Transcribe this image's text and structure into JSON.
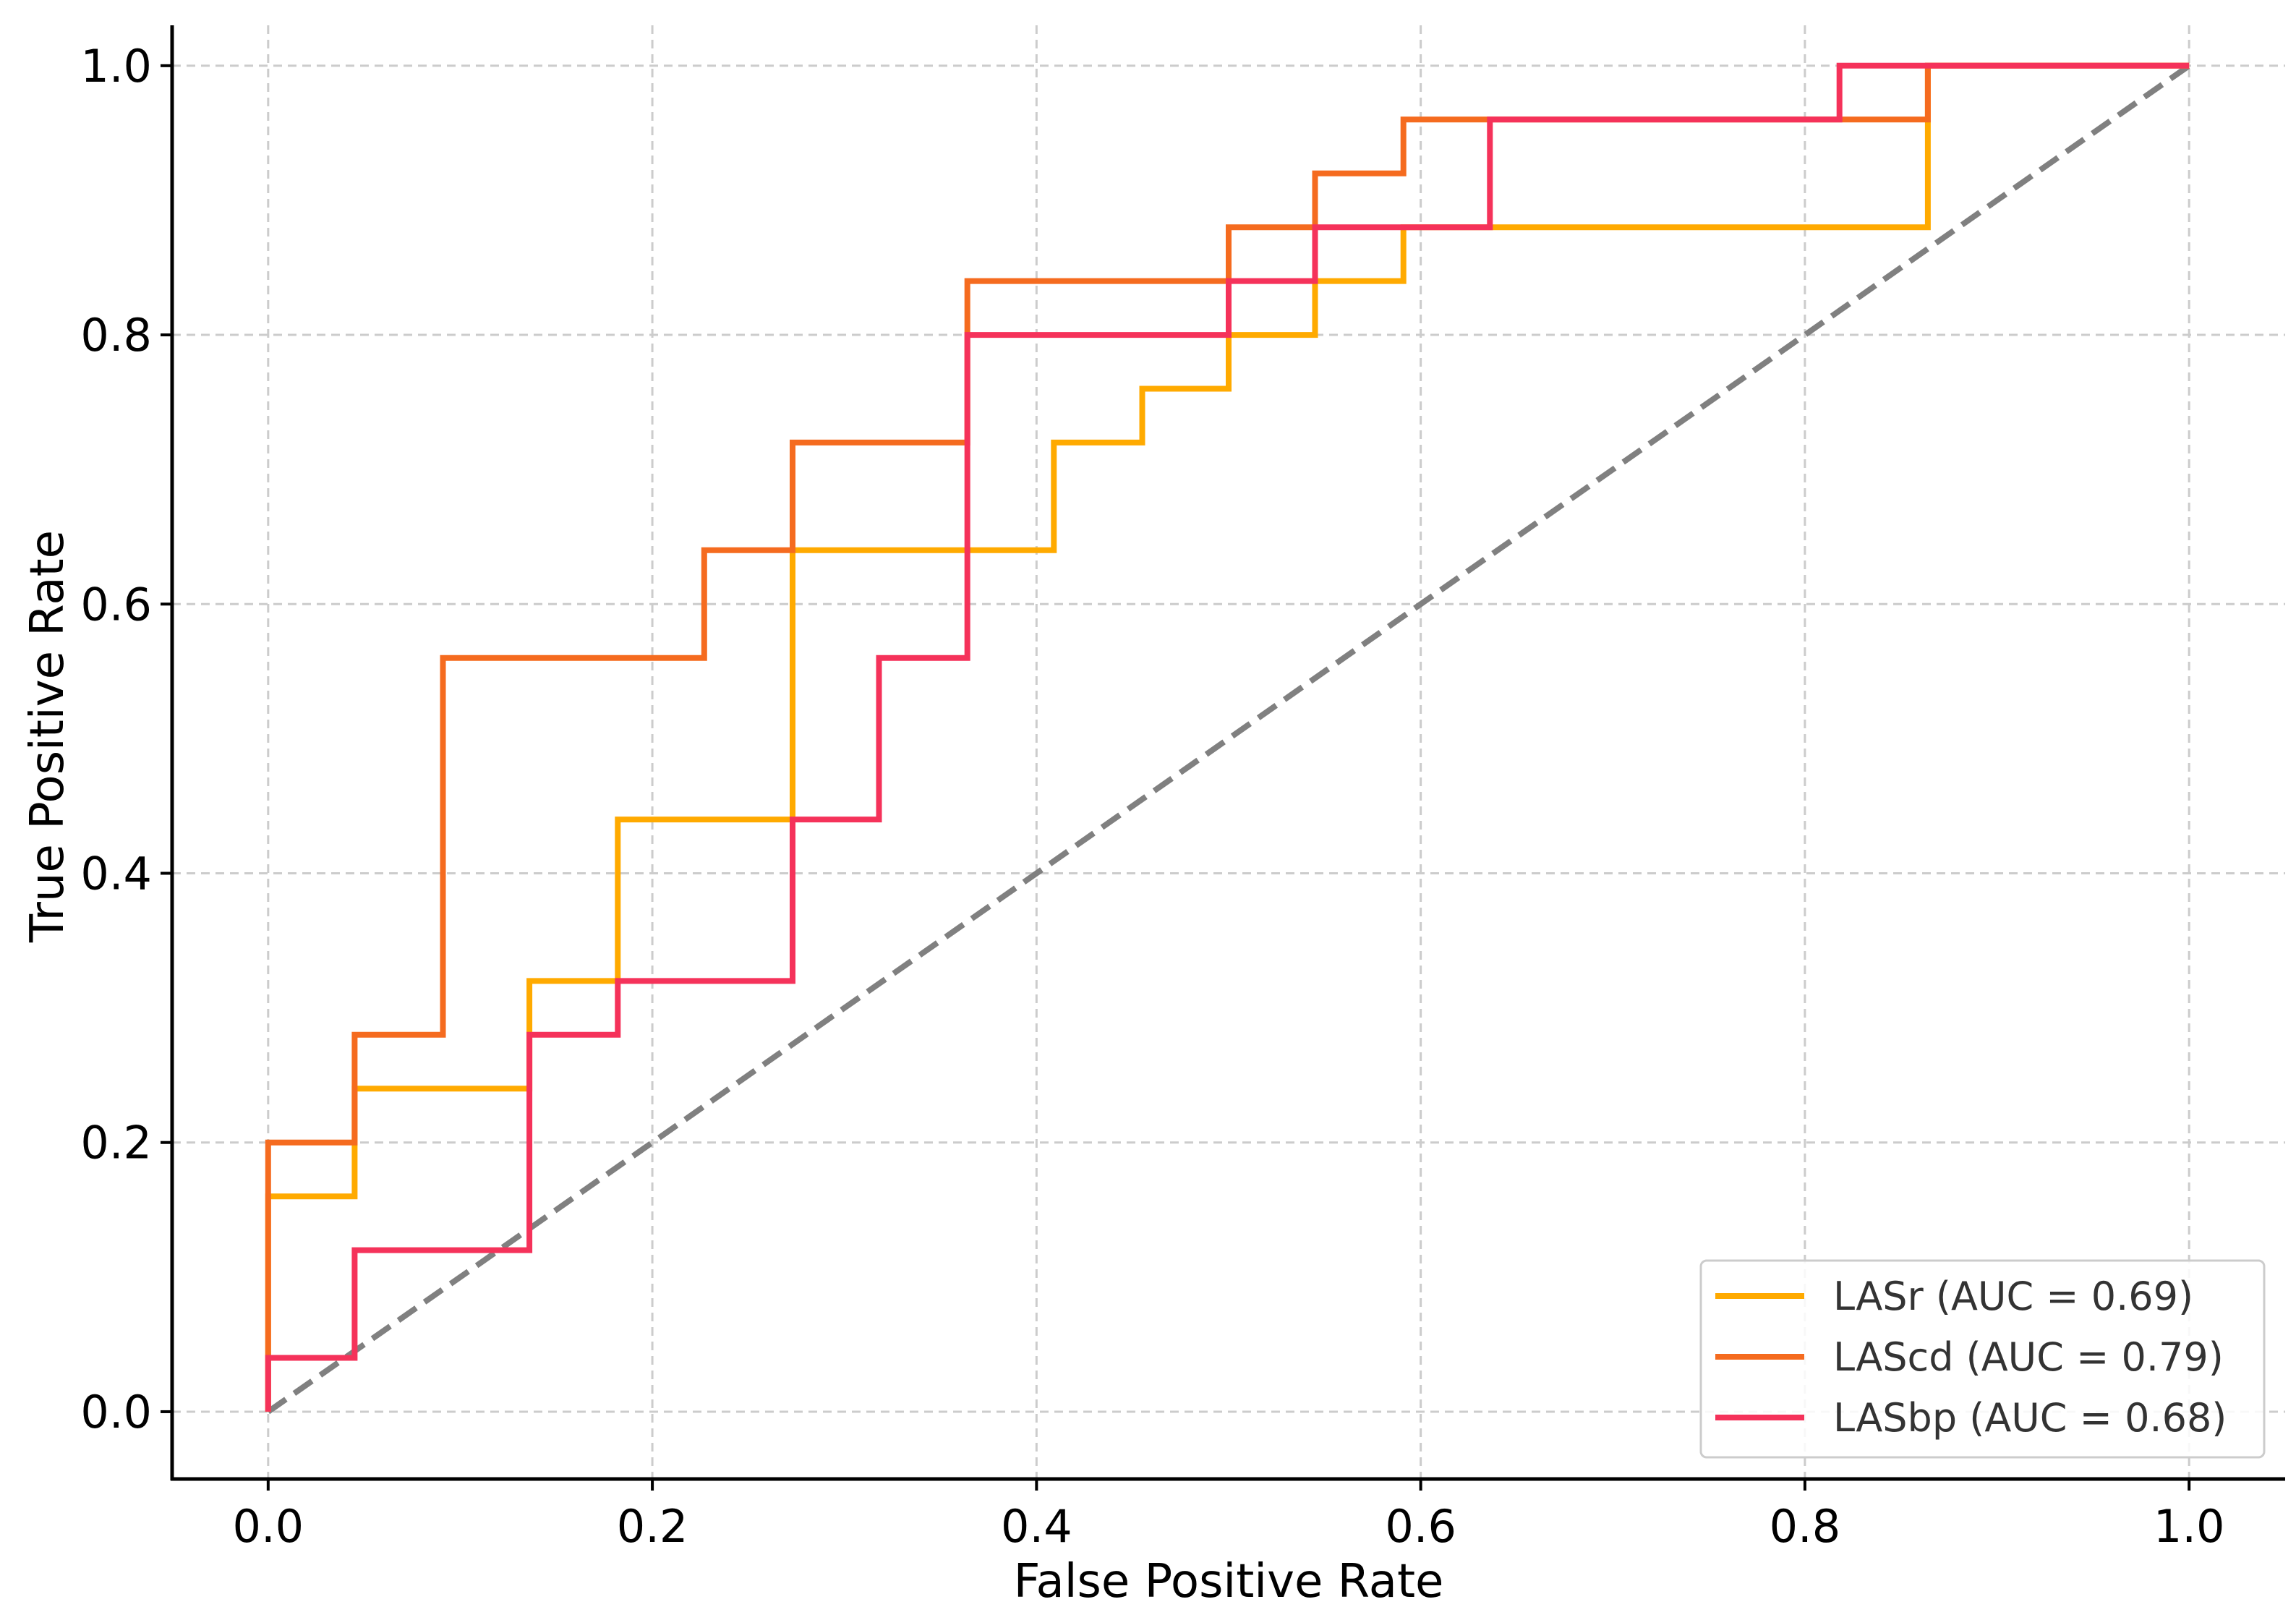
{
  "chart_data": {
    "type": "line",
    "title": "",
    "xlabel": "False Positive Rate",
    "ylabel": "True Positive Rate",
    "xlim": [
      -0.05,
      1.05
    ],
    "ylim": [
      -0.05,
      1.03
    ],
    "grid": true,
    "x_ticks": [
      0.0,
      0.2,
      0.4,
      0.6,
      0.8,
      1.0
    ],
    "x_tick_labels": [
      "0.0",
      "0.2",
      "0.4",
      "0.6",
      "0.8",
      "1.0"
    ],
    "y_ticks": [
      0.0,
      0.2,
      0.4,
      0.6,
      0.8,
      1.0
    ],
    "y_tick_labels": [
      "0.0",
      "0.2",
      "0.4",
      "0.6",
      "0.8",
      "1.0"
    ],
    "legend_position": "lower-right",
    "series": [
      {
        "name": "LASr",
        "label": "LASr (AUC = 0.69)",
        "auc": 0.69,
        "color": "#ffaa00",
        "x": [
          0,
          0,
          0.045,
          0.045,
          0.136,
          0.136,
          0.182,
          0.182,
          0.273,
          0.273,
          0.409,
          0.409,
          0.455,
          0.455,
          0.5,
          0.5,
          0.545,
          0.545,
          0.591,
          0.591,
          0.864,
          0.864,
          1.0
        ],
        "y": [
          0,
          0.16,
          0.16,
          0.24,
          0.24,
          0.32,
          0.32,
          0.44,
          0.44,
          0.64,
          0.64,
          0.72,
          0.72,
          0.76,
          0.76,
          0.8,
          0.8,
          0.84,
          0.84,
          0.88,
          0.88,
          1.0,
          1.0
        ]
      },
      {
        "name": "LAScd",
        "label": "LAScd (AUC = 0.79)",
        "auc": 0.79,
        "color": "#f56b1f",
        "x": [
          0,
          0,
          0.045,
          0.045,
          0.091,
          0.091,
          0.227,
          0.227,
          0.273,
          0.273,
          0.364,
          0.364,
          0.5,
          0.5,
          0.545,
          0.545,
          0.591,
          0.591,
          0.864,
          0.864,
          1.0
        ],
        "y": [
          0,
          0.2,
          0.2,
          0.28,
          0.28,
          0.56,
          0.56,
          0.64,
          0.64,
          0.72,
          0.72,
          0.84,
          0.84,
          0.88,
          0.88,
          0.92,
          0.92,
          0.96,
          0.96,
          1.0,
          1.0
        ]
      },
      {
        "name": "LASbp",
        "label": "LASbp (AUC = 0.68)",
        "auc": 0.68,
        "color": "#f5325a",
        "x": [
          0,
          0,
          0.045,
          0.045,
          0.136,
          0.136,
          0.182,
          0.182,
          0.273,
          0.273,
          0.318,
          0.318,
          0.364,
          0.364,
          0.5,
          0.5,
          0.545,
          0.545,
          0.636,
          0.636,
          0.818,
          0.818,
          1.0
        ],
        "y": [
          0,
          0.04,
          0.04,
          0.12,
          0.12,
          0.28,
          0.28,
          0.32,
          0.32,
          0.44,
          0.44,
          0.56,
          0.56,
          0.8,
          0.8,
          0.84,
          0.84,
          0.88,
          0.88,
          0.96,
          0.96,
          1.0,
          1.0
        ]
      }
    ],
    "reference_line": {
      "name": "chance",
      "x": [
        0,
        1
      ],
      "y": [
        0,
        1
      ],
      "color": "#808080",
      "style": "dashed"
    }
  }
}
